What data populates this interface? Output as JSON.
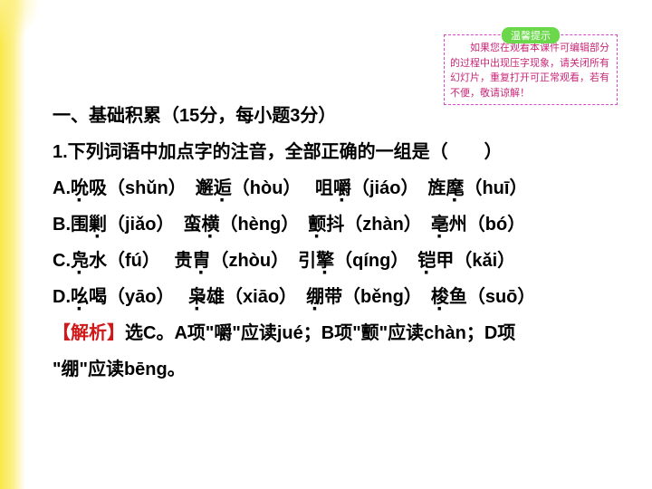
{
  "hint": {
    "label": "温馨提示",
    "text": "　　如果您在观看本课件可编辑部分的过程中出现压字现象，请关闭所有幻灯片，重复打开可正常观看，若有不便，敬请谅解！"
  },
  "section": {
    "title": "一、基础积累（15分，每小题3分）",
    "question": "1.下列词语中加点字的注音，全部正确的一组是（　　）",
    "options": {
      "A": {
        "w1a": "吮",
        "w1b": "吸（shǔn）",
        "w2a": "邂",
        "w2b": "逅",
        "w2c": "（hòu）",
        "w3a": "咀",
        "w3b": "嚼",
        "w3c": "（jiáo）",
        "w4a": "旌",
        "w4b": "麾",
        "w4c": "（huī）"
      },
      "B": {
        "w1a": "围",
        "w1b": "剿",
        "w1c": "（jiǎo）",
        "w2a": "蛮",
        "w2b": "横",
        "w2c": "（hèng）",
        "w3a": "颤",
        "w3b": "抖（zhàn）",
        "w4a": "亳",
        "w4b": "州（bó）"
      },
      "C": {
        "w1a": "凫",
        "w1b": "水（fú）",
        "w2a": "贵",
        "w2b": "胄",
        "w2c": "（zhòu）",
        "w3a": "引",
        "w3b": "擎",
        "w3c": "（qíng）",
        "w4a": "铠",
        "w4b": "甲（kǎi）"
      },
      "D": {
        "w1a": "吆",
        "w1b": "喝（yāo）",
        "w2a": "枭",
        "w2b": "雄（xiāo）",
        "w3a": "绷",
        "w3b": "带（běng）",
        "w4a": "梭",
        "w4b": "鱼（suō）"
      }
    },
    "answer": {
      "label": "【解析】",
      "text1": "选C。A项\"嚼\"应读jué；B项\"颤\"应读chàn；D项",
      "text2": "\"绷\"应读bēng。"
    }
  },
  "colors": {
    "answer": "#d01818",
    "hint_border": "#d848c8",
    "hint_text": "#c82878",
    "hint_label_bg": "#6ad84a"
  }
}
